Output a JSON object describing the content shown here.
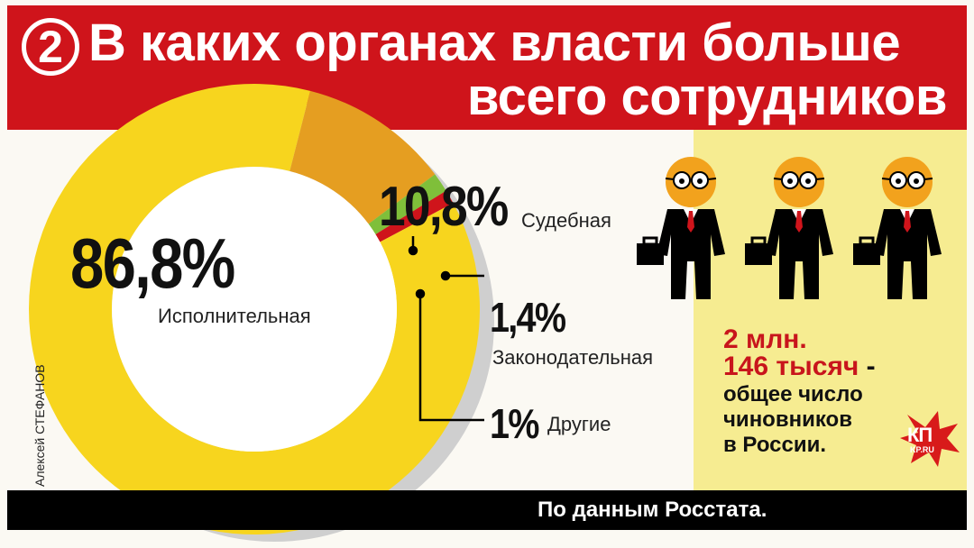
{
  "title": {
    "number": "2",
    "line1": "В каких органах власти больше",
    "line2": "всего сотрудников"
  },
  "chart_data": {
    "type": "pie",
    "variant": "donut",
    "slices": [
      {
        "value_text": "86,8%",
        "value": 86.8,
        "label": "Исполнительная",
        "color": "#f7d51e"
      },
      {
        "value_text": "10,8%",
        "value": 10.8,
        "label": "Судебная",
        "color": "#e59e21"
      },
      {
        "value_text": "1,4%",
        "value": 1.4,
        "label": "Законодательная",
        "color": "#7fbf3a"
      },
      {
        "value_text": "1%",
        "value": 1.0,
        "label": "Другие",
        "color": "#cf141b"
      }
    ]
  },
  "total": {
    "line1": "2 млн.",
    "line2": "146 тысяч",
    "dash": " -",
    "line3": "общее число",
    "line4": "чиновников",
    "line5": "в России."
  },
  "source": "По данным Росстата.",
  "credit": "Алексей СТЕФАНОВ",
  "logo": {
    "mark": "КП",
    "url": "KP.RU"
  },
  "icons": [
    "official-icon",
    "official-icon",
    "official-icon"
  ],
  "colors": {
    "header": "#cf141b",
    "panel": "#f6ec91",
    "footer": "#000000"
  }
}
